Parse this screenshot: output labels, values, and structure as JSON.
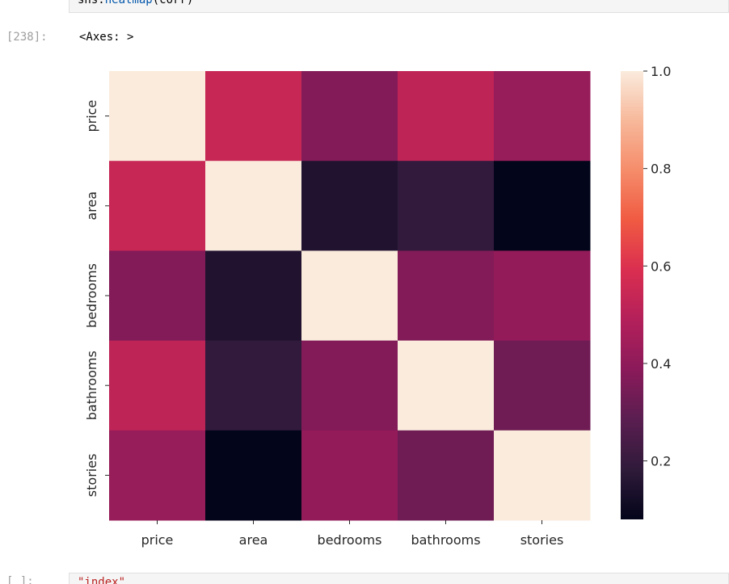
{
  "top_cell": {
    "prefix": "sns.",
    "fn": "heatmap",
    "suffix": "(corr)"
  },
  "output": {
    "prompt": "[238]:",
    "text": "<Axes: >"
  },
  "bottom_cell": {
    "prompt": "[ ]:",
    "code_prefix": "          ",
    "code_str": "\"index\""
  },
  "colormap": {
    "name": "rocket",
    "stops": [
      "#03051a",
      "#2f1a3a",
      "#5a1e50",
      "#8a1a5a",
      "#b3205a",
      "#da2e50",
      "#f05a42",
      "#f58c6a",
      "#f7b89a",
      "#faebdd"
    ]
  },
  "chart_data": {
    "type": "heatmap",
    "rows": [
      "price",
      "area",
      "bedrooms",
      "bathrooms",
      "stories"
    ],
    "cols": [
      "price",
      "area",
      "bedrooms",
      "bathrooms",
      "stories"
    ],
    "values": [
      [
        1.0,
        0.54,
        0.37,
        0.52,
        0.42
      ],
      [
        0.54,
        1.0,
        0.15,
        0.19,
        0.08
      ],
      [
        0.37,
        0.15,
        1.0,
        0.37,
        0.41
      ],
      [
        0.52,
        0.19,
        0.37,
        1.0,
        0.33
      ],
      [
        0.42,
        0.08,
        0.41,
        0.33,
        1.0
      ]
    ],
    "colorbar": {
      "min": 0.08,
      "max": 1.0,
      "ticks": [
        0.2,
        0.4,
        0.6,
        0.8,
        1.0
      ],
      "tick_labels": [
        "0.2",
        "0.4",
        "0.6",
        "0.8",
        "1.0"
      ],
      "position": "right"
    },
    "grid": false,
    "title": "",
    "xlabel": "",
    "ylabel": ""
  }
}
